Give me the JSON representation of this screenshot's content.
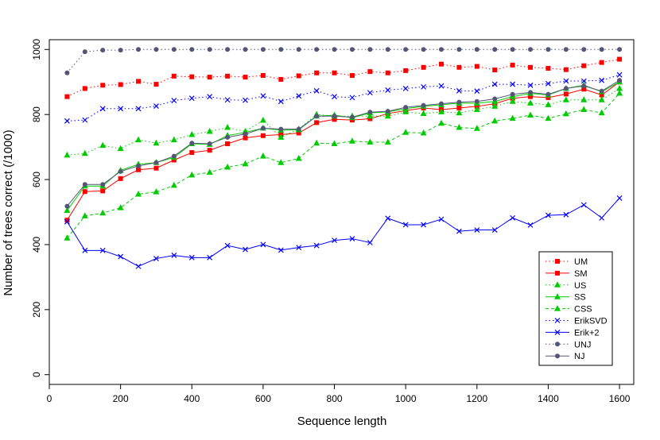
{
  "chart_data": {
    "type": "line",
    "title": "",
    "xlabel": "Sequence length",
    "ylabel": "Number of trees correct (/1000)",
    "xlim": [
      0,
      1640
    ],
    "ylim": [
      -30,
      1030
    ],
    "x_ticks": [
      0,
      200,
      400,
      600,
      800,
      1000,
      1200,
      1400,
      1600
    ],
    "y_ticks": [
      0,
      200,
      400,
      600,
      800,
      1000
    ],
    "grid": false,
    "legend_position": "bottom-right",
    "x": [
      50,
      100,
      150,
      200,
      250,
      300,
      350,
      400,
      450,
      500,
      550,
      600,
      650,
      700,
      750,
      800,
      850,
      900,
      950,
      1000,
      1050,
      1100,
      1150,
      1200,
      1250,
      1300,
      1350,
      1400,
      1450,
      1500,
      1550,
      1600
    ],
    "series": [
      {
        "name": "UM",
        "color": "#ff0000",
        "line": "dotted",
        "marker": "square",
        "values": [
          855,
          880,
          890,
          892,
          902,
          893,
          918,
          916,
          915,
          918,
          915,
          920,
          908,
          919,
          928,
          928,
          920,
          932,
          928,
          935,
          945,
          955,
          945,
          948,
          937,
          952,
          945,
          942,
          938,
          950,
          960,
          970
        ]
      },
      {
        "name": "SM",
        "color": "#ff0000",
        "line": "solid",
        "marker": "square",
        "values": [
          475,
          563,
          565,
          603,
          630,
          635,
          660,
          683,
          690,
          710,
          728,
          735,
          738,
          743,
          775,
          785,
          783,
          787,
          803,
          812,
          820,
          815,
          820,
          825,
          833,
          850,
          855,
          852,
          863,
          878,
          860,
          900
        ]
      },
      {
        "name": "US",
        "color": "#00cc00",
        "line": "dotted",
        "marker": "triangle",
        "values": [
          675,
          680,
          705,
          695,
          722,
          712,
          722,
          738,
          748,
          760,
          748,
          782,
          730,
          755,
          800,
          795,
          795,
          795,
          795,
          808,
          803,
          808,
          805,
          815,
          825,
          840,
          835,
          830,
          845,
          845,
          845,
          880
        ]
      },
      {
        "name": "SS",
        "color": "#00cc00",
        "line": "solid",
        "marker": "triangle",
        "values": [
          505,
          580,
          580,
          628,
          647,
          652,
          668,
          710,
          708,
          735,
          745,
          758,
          752,
          753,
          795,
          798,
          790,
          805,
          808,
          818,
          825,
          830,
          835,
          835,
          840,
          855,
          865,
          860,
          880,
          890,
          870,
          900
        ]
      },
      {
        "name": "CSS",
        "color": "#00cc00",
        "line": "dashed",
        "marker": "triangle",
        "values": [
          420,
          488,
          497,
          513,
          555,
          562,
          582,
          614,
          622,
          638,
          648,
          672,
          652,
          665,
          712,
          710,
          718,
          715,
          715,
          745,
          743,
          773,
          760,
          757,
          780,
          788,
          798,
          788,
          802,
          815,
          805,
          865
        ]
      },
      {
        "name": "ErikSVD",
        "color": "#0000ff",
        "line": "dotted",
        "marker": "x",
        "values": [
          780,
          783,
          818,
          818,
          818,
          826,
          843,
          850,
          855,
          845,
          844,
          857,
          840,
          857,
          873,
          855,
          852,
          867,
          875,
          880,
          885,
          888,
          873,
          872,
          893,
          893,
          890,
          895,
          903,
          903,
          905,
          922
        ]
      },
      {
        "name": "Erik+2",
        "color": "#0000ff",
        "line": "solid",
        "marker": "x",
        "values": [
          470,
          382,
          382,
          363,
          333,
          357,
          367,
          360,
          360,
          397,
          385,
          400,
          383,
          391,
          397,
          413,
          418,
          406,
          481,
          461,
          461,
          478,
          441,
          445,
          445,
          482,
          460,
          490,
          492,
          522,
          482,
          543
        ]
      },
      {
        "name": "UNJ",
        "color": "#555577",
        "line": "dotted",
        "marker": "circle",
        "values": [
          928,
          993,
          998,
          998,
          1000,
          1000,
          1000,
          1000,
          1000,
          1000,
          1000,
          1000,
          1000,
          1000,
          1000,
          1000,
          1000,
          1000,
          1000,
          1000,
          1000,
          1000,
          1000,
          1000,
          1000,
          1000,
          1000,
          1000,
          1000,
          1000,
          1000,
          1000
        ]
      },
      {
        "name": "NJ",
        "color": "#555577",
        "line": "solid",
        "marker": "circle",
        "values": [
          518,
          585,
          585,
          625,
          642,
          652,
          672,
          712,
          710,
          730,
          740,
          758,
          755,
          755,
          795,
          795,
          792,
          807,
          810,
          822,
          828,
          833,
          838,
          840,
          848,
          862,
          868,
          862,
          880,
          888,
          872,
          905
        ]
      }
    ]
  }
}
